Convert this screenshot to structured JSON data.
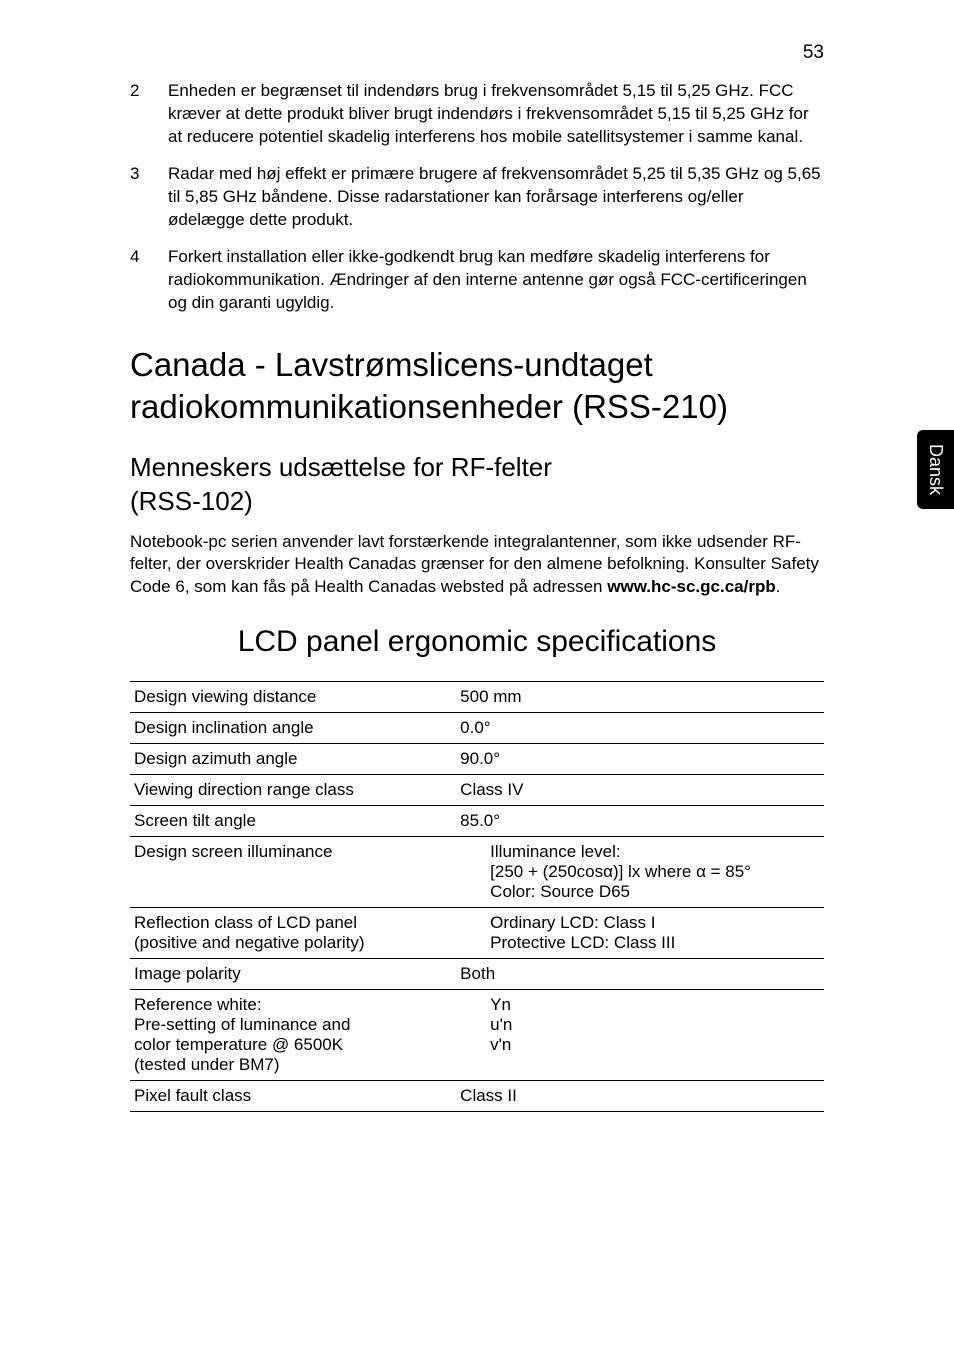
{
  "page_number": "53",
  "side_tab": "Dansk",
  "list_items": [
    {
      "num": "2",
      "text": "Enheden er begrænset til indendørs brug i frekvensområdet 5,15 til 5,25 GHz. FCC kræver at dette produkt bliver brugt indendørs i frekvensområdet 5,15 til 5,25 GHz for at reducere potentiel skadelig interferens hos mobile satellitsystemer i samme kanal."
    },
    {
      "num": "3",
      "text": "Radar med høj effekt er primære brugere af frekvensområdet 5,25 til 5,35 GHz og 5,65 til 5,85 GHz båndene. Disse radarstationer kan forårsage interferens og/eller ødelægge dette produkt."
    },
    {
      "num": "4",
      "text": "Forkert installation eller ikke-godkendt brug kan medføre skadelig interferens for radiokommunikation. Ændringer af den interne antenne gør også FCC-certificeringen og din garanti ugyldig."
    }
  ],
  "h1_line1": "Canada - Lavstrømslicens-undtaget",
  "h1_line2": "radiokommunikationsenheder (RSS-210)",
  "h2_line1": "Menneskers udsættelse for RF-felter",
  "h2_line2": "(RSS-102)",
  "paragraph_pre": "Notebook-pc serien anvender lavt forstærkende integralantenner, som ikke udsender RF-felter, der overskrider Health Canadas grænser for den almene befolkning. Konsulter Safety Code 6, som kan fås på Health Canadas websted på adressen ",
  "paragraph_bold": "www.hc-sc.gc.ca/rpb",
  "paragraph_post": ".",
  "h3_centered": "LCD panel ergonomic specifications",
  "table": {
    "r1c1": "Design viewing distance",
    "r1c2": "500 mm",
    "r2c1": "Design inclination angle",
    "r2c2": "0.0°",
    "r3c1": "Design azimuth angle",
    "r3c2": "90.0°",
    "r4c1": "Viewing direction range class",
    "r4c2": "Class IV",
    "r5c1": "Screen tilt angle",
    "r5c2": "85.0°",
    "r6c1": "Design screen illuminance",
    "r6c2a": "Illuminance level:",
    "r6c2b": "[250 + (250cosα)] lx where α = 85°",
    "r6c2c": "Color: Source D65",
    "r7c1a": "Reflection class of LCD panel",
    "r7c1b": "(positive and negative polarity)",
    "r7c2a": "Ordinary LCD: Class I",
    "r7c2b": "Protective LCD: Class III",
    "r8c1": "Image polarity",
    "r8c2": "Both",
    "r9c1a": "Reference white:",
    "r9c1b": "Pre-setting of luminance and",
    "r9c1c": "color temperature @ 6500K",
    "r9c1d": "(tested under BM7)",
    "r9c2a": "Yn",
    "r9c2b": "u'n",
    "r9c2c": "v'n",
    "r10c1": "Pixel fault class",
    "r10c2": "Class II"
  }
}
